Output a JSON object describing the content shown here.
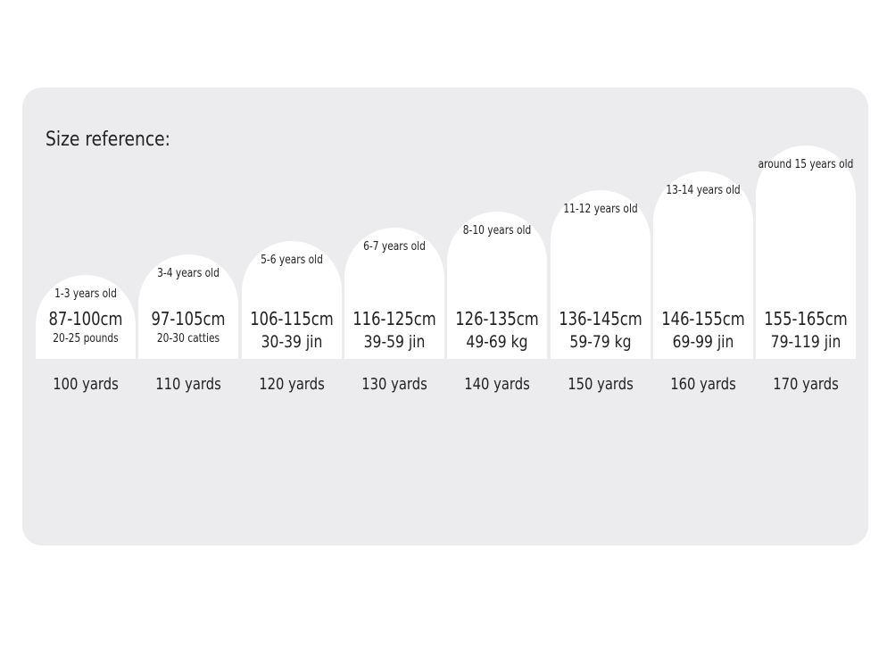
{
  "title": "Size reference:",
  "sizes": [
    {
      "age": "1-3 years old",
      "height": "87-100cm",
      "weight": "20-25 pounds",
      "size": "100 yards"
    },
    {
      "age": "3-4 years old",
      "height": "97-105cm",
      "weight": "20-30 catties",
      "size": "110 yards"
    },
    {
      "age": "5-6 years old",
      "height": "106-115cm",
      "weight": "30-39 jin",
      "size": "120 yards"
    },
    {
      "age": "6-7 years old",
      "height": "116-125cm",
      "weight": "39-59 jin",
      "size": "130 yards"
    },
    {
      "age": "8-10 years old",
      "height": "126-135cm",
      "weight": "49-69 kg",
      "size": "140 yards"
    },
    {
      "age": "11-12 years old",
      "height": "136-145cm",
      "weight": "59-79 kg",
      "size": "150 yards"
    },
    {
      "age": "13-14 years old",
      "height": "146-155cm",
      "weight": "69-99 jin",
      "size": "160 yards"
    },
    {
      "age": "around 15 years old",
      "height": "155-165cm",
      "weight": "79-119 jin",
      "size": "170 yards"
    }
  ]
}
